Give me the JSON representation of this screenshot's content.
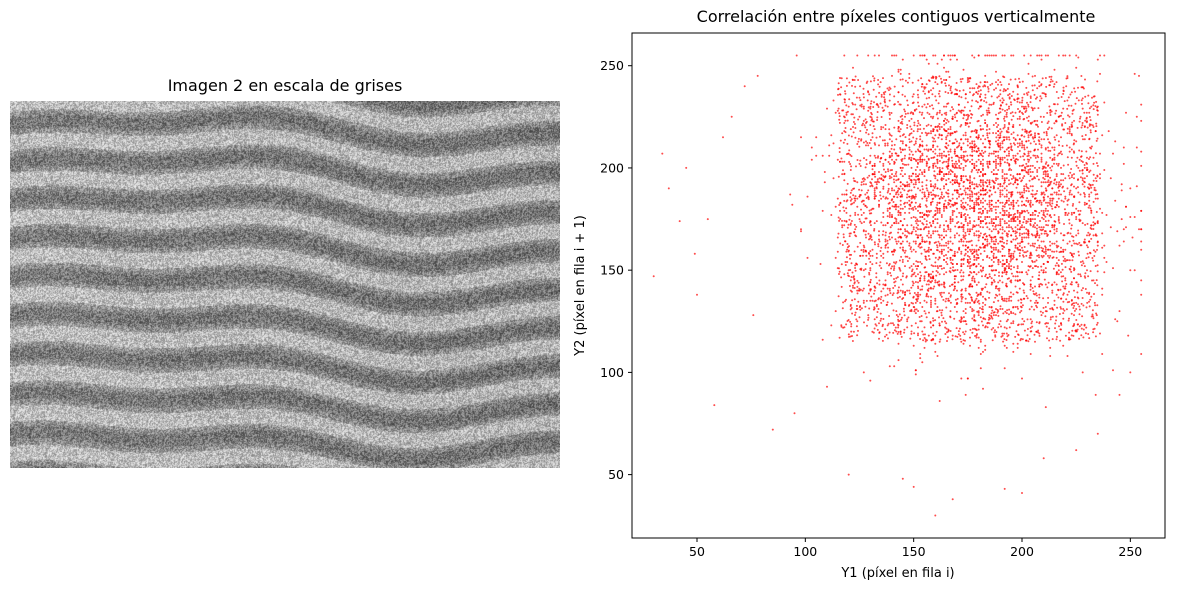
{
  "left_panel": {
    "title": "Imagen 2 en escala de grises",
    "image": "grayscale sand ripples texture"
  },
  "chart_data": {
    "type": "scatter",
    "title": "Correlación entre píxeles contiguos verticalmente",
    "xlabel": "Y1 (píxel en fila i)",
    "ylabel": "Y2 (píxel en fila i + 1)",
    "xlim": [
      20,
      266
    ],
    "ylim": [
      19,
      266
    ],
    "x_ticks": [
      50,
      100,
      150,
      200,
      250
    ],
    "y_ticks": [
      50,
      100,
      150,
      200,
      250
    ],
    "point_color": "#ff0000",
    "point_alpha": 0.7,
    "grid": false,
    "legend": "none",
    "distribution": {
      "core_x_range": [
        115,
        235
      ],
      "core_y_range": [
        115,
        245
      ],
      "x_mean": 178,
      "y_mean": 182,
      "x_sd": 30,
      "y_sd": 32,
      "x_extent": [
        30,
        255
      ],
      "y_extent": [
        30,
        255
      ]
    },
    "outlier_points": [
      [
        30,
        147
      ],
      [
        37,
        190
      ],
      [
        42,
        174
      ],
      [
        45,
        200
      ],
      [
        49,
        158
      ],
      [
        50,
        138
      ],
      [
        58,
        84
      ],
      [
        55,
        175
      ],
      [
        62,
        215
      ],
      [
        66,
        225
      ],
      [
        72,
        240
      ],
      [
        78,
        245
      ],
      [
        160,
        30
      ],
      [
        168,
        38
      ],
      [
        150,
        44
      ],
      [
        192,
        43
      ],
      [
        200,
        41
      ],
      [
        145,
        48
      ],
      [
        120,
        50
      ],
      [
        210,
        58
      ],
      [
        225,
        62
      ],
      [
        235,
        70
      ],
      [
        85,
        72
      ],
      [
        95,
        80
      ],
      [
        245,
        89
      ],
      [
        250,
        100
      ],
      [
        253,
        210
      ],
      [
        254,
        170
      ],
      [
        250,
        190
      ],
      [
        252,
        150
      ]
    ]
  }
}
